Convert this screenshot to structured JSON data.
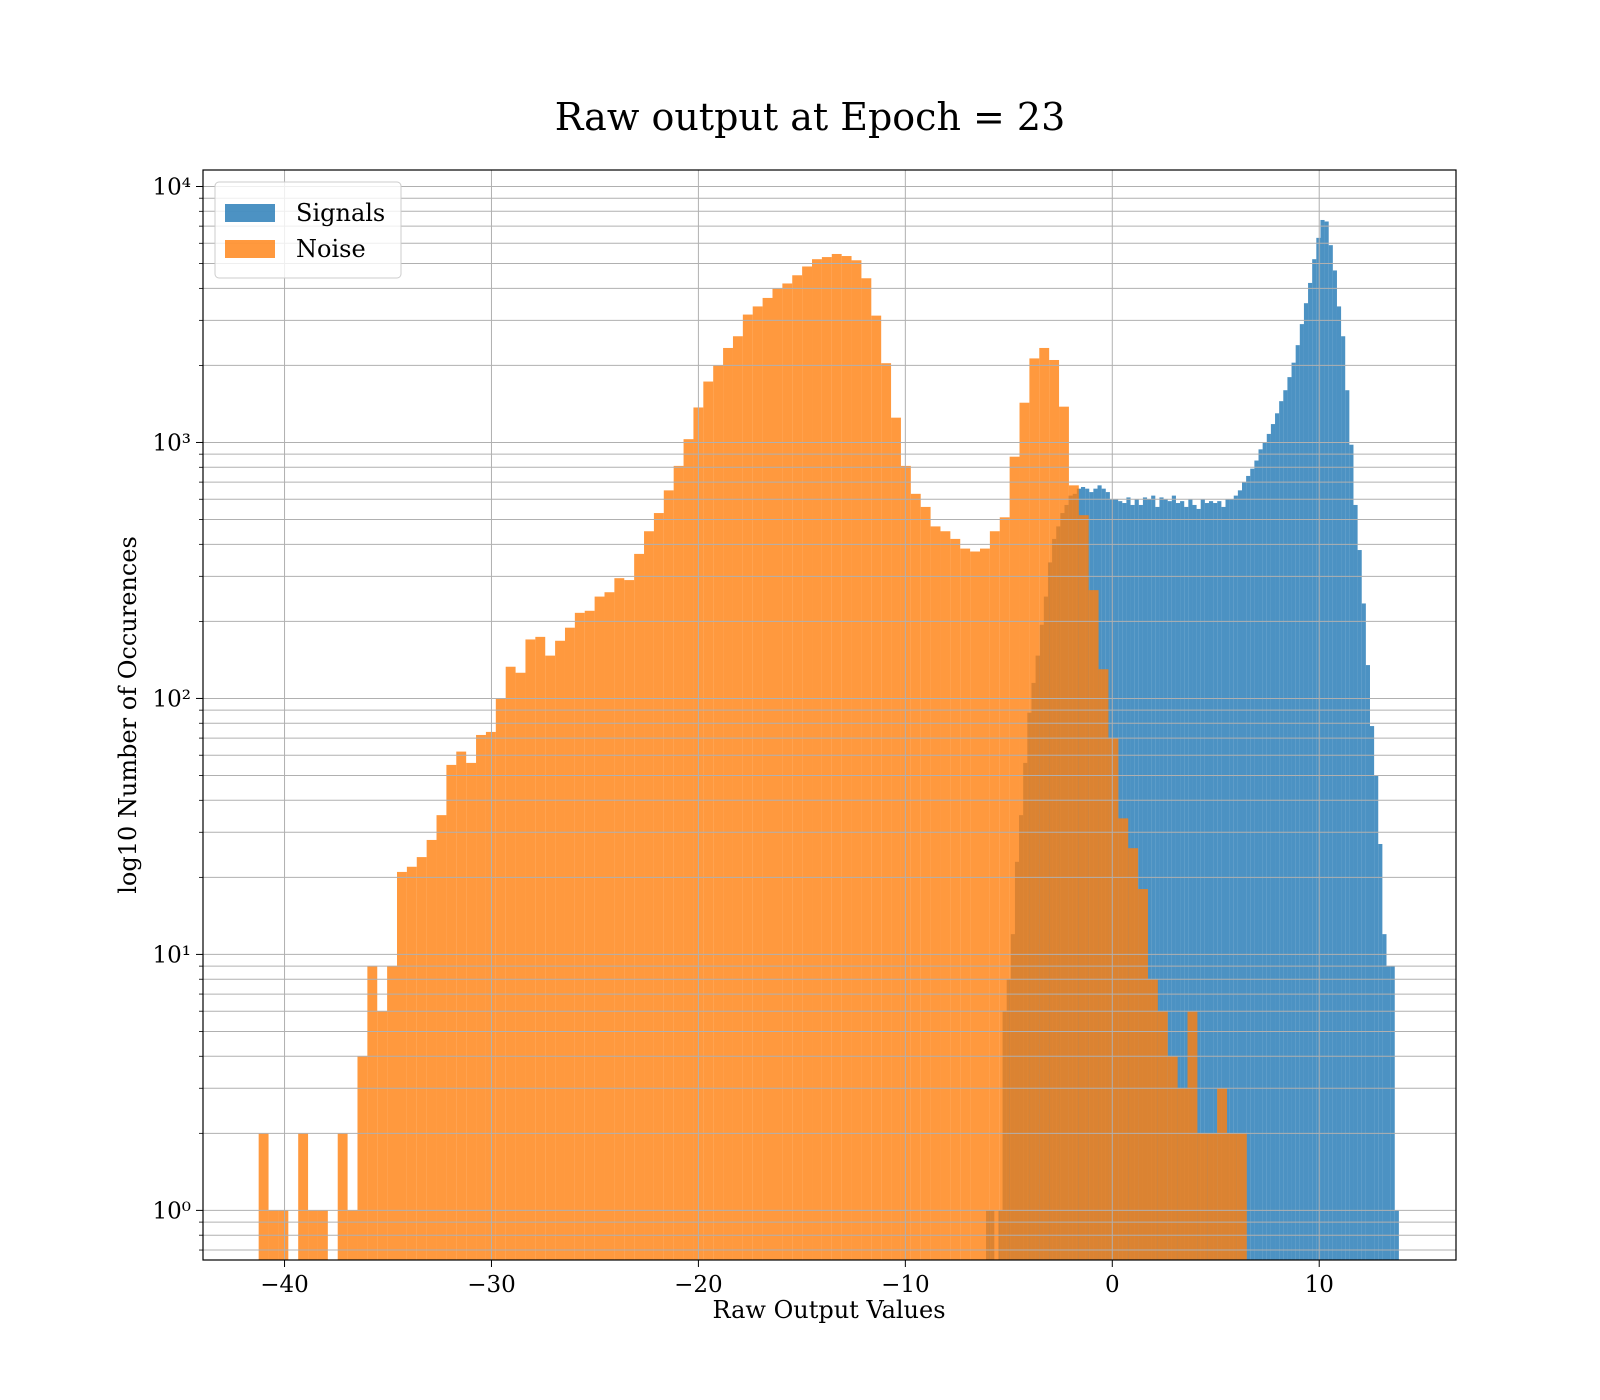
{
  "chart_data": {
    "type": "histogram",
    "title": "Raw output at Epoch = 23",
    "xlabel": "Raw Output Values",
    "ylabel": "log10 Number of Occurences",
    "yscale": "log",
    "grid": true,
    "legend": "upper left",
    "xlim": [
      -43.94,
      16.61
    ],
    "xticks": [
      {
        "value": -40,
        "label": "−40"
      },
      {
        "value": -30,
        "label": "−30"
      },
      {
        "value": -20,
        "label": "−20"
      },
      {
        "value": -10,
        "label": "−10"
      },
      0,
      10
    ],
    "ylim": [
      0.64,
      11600
    ],
    "yticks": [
      {
        "value": 1,
        "label": "10⁰"
      },
      {
        "value": 10,
        "label": "10¹"
      },
      {
        "value": 100,
        "label": "10²"
      },
      {
        "value": 1000,
        "label": "10³"
      },
      {
        "value": 10000,
        "label": "10⁴"
      }
    ],
    "minor_yticks": [
      0.7,
      0.8,
      0.9,
      2,
      3,
      4,
      5,
      6,
      7,
      8,
      9,
      20,
      30,
      40,
      50,
      60,
      70,
      80,
      90,
      200,
      300,
      400,
      500,
      600,
      700,
      800,
      900,
      2000,
      3000,
      4000,
      5000,
      6000,
      7000,
      8000,
      9000
    ],
    "series": [
      {
        "name": "Signals",
        "color": "#1f77b4",
        "bins": [
          -6.1,
          -5.9005,
          -5.701,
          -5.5015,
          -5.302,
          -5.1025,
          -4.903,
          -4.7035,
          -4.504,
          -4.3045,
          -4.105,
          -3.9055,
          -3.706,
          -3.5065,
          -3.307,
          -3.1075,
          -2.908,
          -2.7085,
          -2.509,
          -2.3095,
          -2.11,
          -1.9105,
          -1.711,
          -1.5115,
          -1.312,
          -1.1125,
          -0.913,
          -0.7135,
          -0.514,
          -0.3145,
          -0.115,
          0.0845,
          0.284,
          0.4835,
          0.683,
          0.8825,
          1.082,
          1.2815,
          1.481,
          1.6805,
          1.88,
          2.0795,
          2.279,
          2.4785,
          2.678,
          2.8775,
          3.077,
          3.2765,
          3.476,
          3.6755,
          3.875,
          4.0745,
          4.274,
          4.4735,
          4.673,
          4.8725,
          5.072,
          5.2715,
          5.471,
          5.6705,
          5.87,
          6.0695,
          6.269,
          6.4685,
          6.668,
          6.8675,
          7.067,
          7.2665,
          7.466,
          7.6655,
          7.865,
          8.0645,
          8.264,
          8.4635,
          8.663,
          8.8625,
          9.062,
          9.2615,
          9.461,
          9.6605,
          9.86,
          10.0595,
          10.259,
          10.4585,
          10.658,
          10.8575,
          11.057,
          11.2565,
          11.456,
          11.6555,
          11.855,
          12.0545,
          12.254,
          12.4535,
          12.653,
          12.8525,
          13.052,
          13.2515,
          13.451,
          13.6505,
          13.85
        ],
        "values": [
          1,
          1,
          0,
          1,
          6,
          8,
          12,
          23,
          35,
          56,
          88,
          115,
          147,
          194,
          250,
          340,
          420,
          470,
          530,
          570,
          620,
          630,
          660,
          670,
          660,
          640,
          660,
          680,
          660,
          640,
          600,
          600,
          590,
          580,
          610,
          570,
          600,
          570,
          610,
          600,
          620,
          560,
          610,
          600,
          590,
          620,
          580,
          590,
          560,
          600,
          570,
          550,
          600,
          580,
          590,
          580,
          590,
          560,
          600,
          600,
          620,
          650,
          700,
          740,
          790,
          850,
          940,
          1000,
          1080,
          1180,
          1300,
          1450,
          1600,
          1800,
          2050,
          2400,
          2900,
          3500,
          4200,
          5200,
          6300,
          7400,
          7300,
          5900,
          4700,
          3400,
          2600,
          1600,
          980,
          570,
          380,
          235,
          135,
          78,
          50,
          27,
          12,
          9,
          9,
          1
        ]
      },
      {
        "name": "Noise",
        "color": "#ff7f0e",
        "bins": [
          -41.25,
          -40.7725,
          -40.295,
          -39.8175,
          -39.34,
          -38.8625,
          -38.385,
          -37.9075,
          -37.43,
          -36.9525,
          -36.475,
          -35.9975,
          -35.52,
          -35.0425,
          -34.565,
          -34.0875,
          -33.61,
          -33.1325,
          -32.655,
          -32.1775,
          -31.7,
          -31.2225,
          -30.745,
          -30.2675,
          -29.79,
          -29.3125,
          -28.835,
          -28.3575,
          -27.88,
          -27.4025,
          -26.925,
          -26.4475,
          -25.97,
          -25.4925,
          -25.015,
          -24.5375,
          -24.06,
          -23.5825,
          -23.105,
          -22.6275,
          -22.15,
          -21.6725,
          -21.195,
          -20.7175,
          -20.24,
          -19.7625,
          -19.285,
          -18.8075,
          -18.33,
          -17.8525,
          -17.375,
          -16.8975,
          -16.42,
          -15.9425,
          -15.465,
          -14.9875,
          -14.51,
          -14.0325,
          -13.555,
          -13.0775,
          -12.6,
          -12.1225,
          -11.645,
          -11.1675,
          -10.69,
          -10.2125,
          -9.735,
          -9.2575,
          -8.78,
          -8.3025,
          -7.825,
          -7.3475,
          -6.87,
          -6.3925,
          -5.915,
          -5.4375,
          -4.96,
          -4.4825,
          -4.005,
          -3.5275,
          -3.05,
          -2.5725,
          -2.095,
          -1.6175,
          -1.14,
          -0.6625,
          -0.185,
          0.2925,
          0.77,
          1.2475,
          1.725,
          2.2025,
          2.68,
          3.1575,
          3.635,
          4.1125,
          4.59,
          5.0675,
          5.545,
          6.0225,
          6.5
        ],
        "values": [
          2,
          1,
          1,
          0,
          2,
          1,
          1,
          0,
          2,
          1,
          4,
          9,
          6,
          9,
          21,
          22,
          24,
          28,
          35,
          55,
          62,
          56,
          72,
          74,
          100,
          133,
          126,
          170,
          174,
          147,
          168,
          189,
          216,
          220,
          250,
          260,
          295,
          290,
          367,
          450,
          530,
          650,
          810,
          1030,
          1370,
          1730,
          2000,
          2340,
          2600,
          3160,
          3400,
          3670,
          3990,
          4180,
          4500,
          4870,
          5200,
          5300,
          5450,
          5350,
          5150,
          4380,
          3130,
          2040,
          1250,
          810,
          630,
          560,
          470,
          450,
          420,
          385,
          375,
          385,
          450,
          510,
          880,
          1430,
          2130,
          2340,
          2100,
          1380,
          680,
          520,
          265,
          130,
          70,
          34,
          26,
          18,
          8,
          6,
          4,
          3,
          6,
          2,
          2,
          3,
          2,
          2
        ]
      }
    ]
  }
}
